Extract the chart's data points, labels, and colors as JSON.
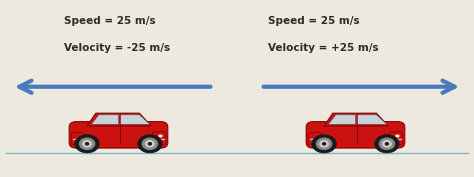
{
  "bg_color": "#ede9df",
  "text_color": "#2c2c2c",
  "arrow_color": "#4a7bbf",
  "line_color": "#7ab8cc",
  "car_body_color": "#cc1111",
  "car_dark_color": "#880000",
  "car_shadow_color": "#aa0000",
  "wheel_outer": "#1a1a1a",
  "wheel_mid": "#888888",
  "wheel_hub": "#cccccc",
  "window_color": "#c8e8f0",
  "window_edge": "#555555",
  "left_text_line1": "Speed = 25 m/s",
  "left_text_line2": "Velocity = -25 m/s",
  "right_text_line1": "Speed = 25 m/s",
  "right_text_line2": "Velocity = +25 m/s",
  "arrow_lw": 3.0,
  "font_size": 7.5,
  "figsize": [
    4.74,
    1.77
  ],
  "dpi": 100
}
